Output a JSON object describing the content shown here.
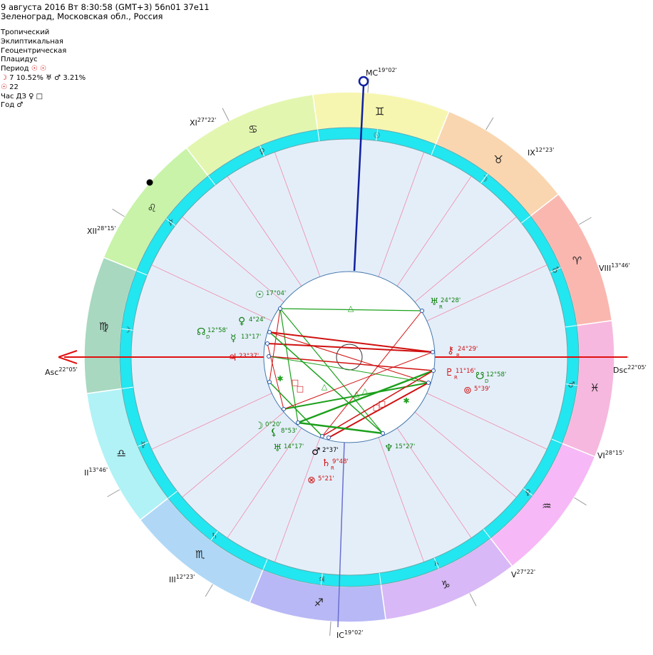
{
  "header": {
    "line1": "9 августа 2016  Вт   8:30:58 (GMT+3) 56n01  37e11",
    "line2": "Зеленоград, Московская обл., Россия"
  },
  "settings": {
    "zodiac": "Тропический",
    "coords": "Эклиптикальная",
    "center": "Геоцентрическая",
    "houses": "Плацидус",
    "period_label": "Период",
    "period_glyphs": "☉ ☉",
    "moon_line_glyph": "☽",
    "moon_line_text": "7 10.52%",
    "moon_line_glyphs2": "♅ ♂",
    "moon_line_pct2": "3.21%",
    "sun_line_glyph": "☉",
    "sun_line_text": "22",
    "hour_label": "Час ДЗ",
    "hour_glyphs": "♀ □",
    "year_label": "Год",
    "year_glyph": "♂"
  },
  "houses": {
    "cusps": [
      {
        "label": "Asc",
        "deg": "22°05'"
      },
      {
        "label": "II",
        "deg": "13°46'"
      },
      {
        "label": "III",
        "deg": "12°23'"
      },
      {
        "label": "IC",
        "deg": "19°02'"
      },
      {
        "label": "V",
        "deg": "27°22'"
      },
      {
        "label": "VI",
        "deg": "28°15'"
      },
      {
        "label": "Dsc",
        "deg": "22°05'"
      },
      {
        "label": "VIII",
        "deg": "13°46'"
      },
      {
        "label": "IX",
        "deg": "12°23'"
      },
      {
        "label": "MC",
        "deg": "19°02'"
      },
      {
        "label": "XI",
        "deg": "27°22'"
      },
      {
        "label": "XII",
        "deg": "28°15'"
      }
    ]
  },
  "zodiac_signs": [
    {
      "name": "aries",
      "glyph": "♈",
      "color": "#f9b7b0"
    },
    {
      "name": "taurus",
      "glyph": "♉",
      "color": "#f9d6b0"
    },
    {
      "name": "gemini",
      "glyph": "♊",
      "color": "#f6f6b0"
    },
    {
      "name": "cancer",
      "glyph": "♋",
      "color": "#e3f6b0"
    },
    {
      "name": "leo",
      "glyph": "♌",
      "color": "#c8f3a8"
    },
    {
      "name": "virgo",
      "glyph": "♍",
      "color": "#a8d8c0"
    },
    {
      "name": "libra",
      "glyph": "♎",
      "color": "#b0f2f6"
    },
    {
      "name": "scorpio",
      "glyph": "♏",
      "color": "#b0d8f6"
    },
    {
      "name": "sagittarius",
      "glyph": "♐",
      "color": "#b8b8f6"
    },
    {
      "name": "capricorn",
      "glyph": "♑",
      "color": "#d8b8f6"
    },
    {
      "name": "aquarius",
      "glyph": "♒",
      "color": "#f6b8f6"
    },
    {
      "name": "pisces",
      "glyph": "♓",
      "color": "#f6b8de"
    }
  ],
  "rulers_ring": [
    {
      "glyph": "♂",
      "color": "#444"
    },
    {
      "glyph": "☽",
      "color": "#444"
    },
    {
      "glyph": "☉",
      "color": "#444"
    },
    {
      "glyph": "♀",
      "color": "#444"
    },
    {
      "glyph": "☿",
      "color": "#444"
    },
    {
      "glyph": "☽",
      "color": "#444"
    },
    {
      "glyph": "☿",
      "color": "#444"
    },
    {
      "glyph": "♄",
      "color": "#444"
    },
    {
      "glyph": "♃",
      "color": "#444"
    },
    {
      "glyph": "♄",
      "color": "#444"
    },
    {
      "glyph": "♀",
      "color": "#444"
    },
    {
      "glyph": "♂",
      "color": "#444"
    }
  ],
  "planets": [
    {
      "name": "sun",
      "glyph": "☉",
      "deg": "17°04'",
      "retro": "",
      "color": "#108010"
    },
    {
      "name": "venus",
      "glyph": "♀",
      "deg": "4°24'",
      "retro": "",
      "color": "#108010"
    },
    {
      "name": "north-node",
      "glyph": "☊",
      "deg": "12°58'",
      "retro": "D",
      "color": "#108010"
    },
    {
      "name": "mercury",
      "glyph": "☿",
      "deg": "13°17'",
      "retro": "",
      "color": "#108010"
    },
    {
      "name": "jupiter",
      "glyph": "♃",
      "deg": "23°37'",
      "retro": "",
      "color": "#d01010"
    },
    {
      "name": "moon",
      "glyph": "☽",
      "deg": "0°20'",
      "retro": "",
      "color": "#108010"
    },
    {
      "name": "lilith",
      "glyph": "⚸",
      "deg": "8°53'",
      "retro": "",
      "color": "#108010"
    },
    {
      "name": "neptune-node",
      "glyph": "♅",
      "deg": "14°17'",
      "retro": "",
      "color": "#108010"
    },
    {
      "name": "mars",
      "glyph": "♂",
      "deg": "2°37'",
      "retro": "",
      "color": "#000"
    },
    {
      "name": "saturn",
      "glyph": "♄",
      "deg": "9°48'",
      "retro": "R",
      "color": "#d01010"
    },
    {
      "name": "fortune",
      "glyph": "⊗",
      "deg": "5°21'",
      "retro": "",
      "color": "#d01010"
    },
    {
      "name": "neptune",
      "glyph": "♆",
      "deg": "15°27'",
      "retro": "",
      "color": "#108010"
    },
    {
      "name": "uranus",
      "glyph": "♅",
      "deg": "24°28'",
      "retro": "R",
      "color": "#108010"
    },
    {
      "name": "chiron",
      "glyph": "⚷",
      "deg": "24°29'",
      "retro": "R",
      "color": "#d01010"
    },
    {
      "name": "pluto",
      "glyph": "♇",
      "deg": "11°16'",
      "retro": "R",
      "color": "#d01010"
    },
    {
      "name": "south-node",
      "glyph": "☋",
      "deg": "12°58'",
      "retro": "D",
      "color": "#108010"
    },
    {
      "name": "selena",
      "glyph": "⊚",
      "deg": "5°39'",
      "retro": "",
      "color": "#d01010"
    }
  ],
  "aspect_glyphs": {
    "trine": "△",
    "square": "□",
    "sextile": "✱"
  }
}
